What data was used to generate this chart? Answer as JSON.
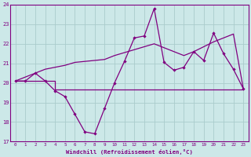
{
  "background_color": "#cce8e8",
  "grid_color": "#aacccc",
  "line_color": "#800080",
  "xlabel": "Windchill (Refroidissement éolien,°C)",
  "xlim": [
    -0.5,
    23.5
  ],
  "ylim": [
    17,
    24
  ],
  "yticks": [
    17,
    18,
    19,
    20,
    21,
    22,
    23,
    24
  ],
  "xticks": [
    0,
    1,
    2,
    3,
    4,
    5,
    6,
    7,
    8,
    9,
    10,
    11,
    12,
    13,
    14,
    15,
    16,
    17,
    18,
    19,
    20,
    21,
    22,
    23
  ],
  "line1_x": [
    0,
    1,
    2,
    3,
    4,
    5,
    6,
    7,
    8,
    9,
    10,
    11,
    12,
    13,
    14,
    15,
    16,
    17,
    18,
    19,
    20,
    21,
    22,
    23
  ],
  "line1_y": [
    20.1,
    20.1,
    20.5,
    20.1,
    19.6,
    19.3,
    18.4,
    17.5,
    17.4,
    18.7,
    20.0,
    21.1,
    22.3,
    22.4,
    23.8,
    21.05,
    20.65,
    20.8,
    21.6,
    21.15,
    22.55,
    21.5,
    20.7,
    19.7
  ],
  "line2_x": [
    0,
    1,
    2,
    3,
    4,
    5,
    6,
    7,
    8,
    9,
    10,
    11,
    12,
    13,
    14,
    15,
    16,
    17,
    18,
    19,
    20,
    21,
    22,
    23
  ],
  "line2_y": [
    20.1,
    20.3,
    20.5,
    20.7,
    20.8,
    20.9,
    21.05,
    21.1,
    21.15,
    21.2,
    21.4,
    21.55,
    21.7,
    21.85,
    22.0,
    21.8,
    21.6,
    21.4,
    21.6,
    21.85,
    22.1,
    22.3,
    22.5,
    19.7
  ],
  "line3_x": [
    0,
    4,
    4,
    23
  ],
  "line3_y": [
    20.1,
    20.1,
    19.65,
    19.65
  ]
}
